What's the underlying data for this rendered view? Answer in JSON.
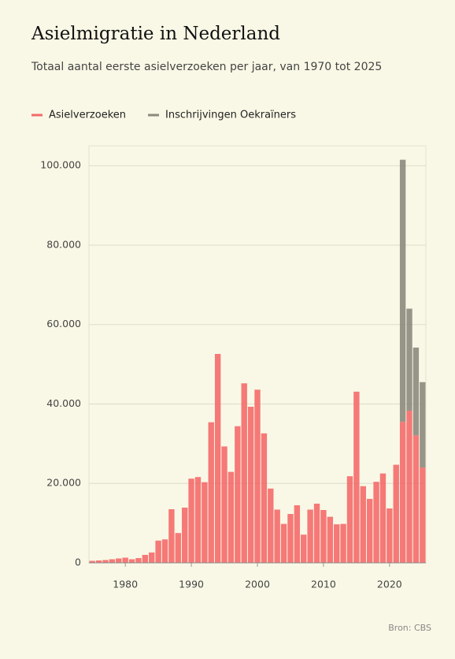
{
  "chart_data": {
    "type": "stacked_bar",
    "title": "Asielmigratie in Nederland",
    "subtitle": "Totaal aantal eerste asielverzoeken per jaar, van 1970 tot 2025",
    "source": "Bron: CBS",
    "x": [
      1975,
      1976,
      1977,
      1978,
      1979,
      1980,
      1981,
      1982,
      1983,
      1984,
      1985,
      1986,
      1987,
      1988,
      1989,
      1990,
      1991,
      1992,
      1993,
      1994,
      1995,
      1996,
      1997,
      1998,
      1999,
      2000,
      2001,
      2002,
      2003,
      2004,
      2005,
      2006,
      2007,
      2008,
      2009,
      2010,
      2011,
      2012,
      2013,
      2014,
      2015,
      2016,
      2017,
      2018,
      2019,
      2020,
      2021,
      2022,
      2023,
      2024,
      2025
    ],
    "series": [
      {
        "name": "Asielverzoeken",
        "color": "#f46a6a",
        "values": [
          500,
          600,
          700,
          900,
          1100,
          1300,
          900,
          1200,
          2000,
          2600,
          5600,
          5900,
          13500,
          7500,
          13900,
          21200,
          21600,
          20300,
          35400,
          52600,
          29300,
          22900,
          34400,
          45200,
          39300,
          43600,
          32600,
          18700,
          13400,
          9800,
          12300,
          14500,
          7100,
          13400,
          14900,
          13300,
          11600,
          9700,
          9800,
          21800,
          43100,
          19300,
          16100,
          20400,
          22500,
          13700,
          24700,
          35500,
          38300,
          32100,
          24000
        ]
      },
      {
        "name": "Inschrijvingen Oekraïners",
        "color": "#8c8a7d",
        "values": [
          null,
          null,
          null,
          null,
          null,
          null,
          null,
          null,
          null,
          null,
          null,
          null,
          null,
          null,
          null,
          null,
          null,
          null,
          null,
          null,
          null,
          null,
          null,
          null,
          null,
          null,
          null,
          null,
          null,
          null,
          null,
          null,
          null,
          null,
          null,
          null,
          null,
          null,
          null,
          null,
          null,
          null,
          null,
          null,
          null,
          null,
          null,
          66000,
          25700,
          22100,
          21500
        ]
      }
    ],
    "xlim": [
      1974.5,
      2025.5
    ],
    "xticks": [
      1980,
      1990,
      2000,
      2010,
      2020
    ],
    "ylim": [
      0,
      105000
    ],
    "yticks": [
      0,
      {
        "value": 20000,
        "label": "20.000"
      },
      {
        "value": 40000,
        "label": "40.000"
      },
      {
        "value": 60000,
        "label": "60.000"
      },
      {
        "value": 80000,
        "label": "80.000"
      },
      {
        "value": 100000,
        "label": "100.000"
      }
    ],
    "grid": true
  }
}
